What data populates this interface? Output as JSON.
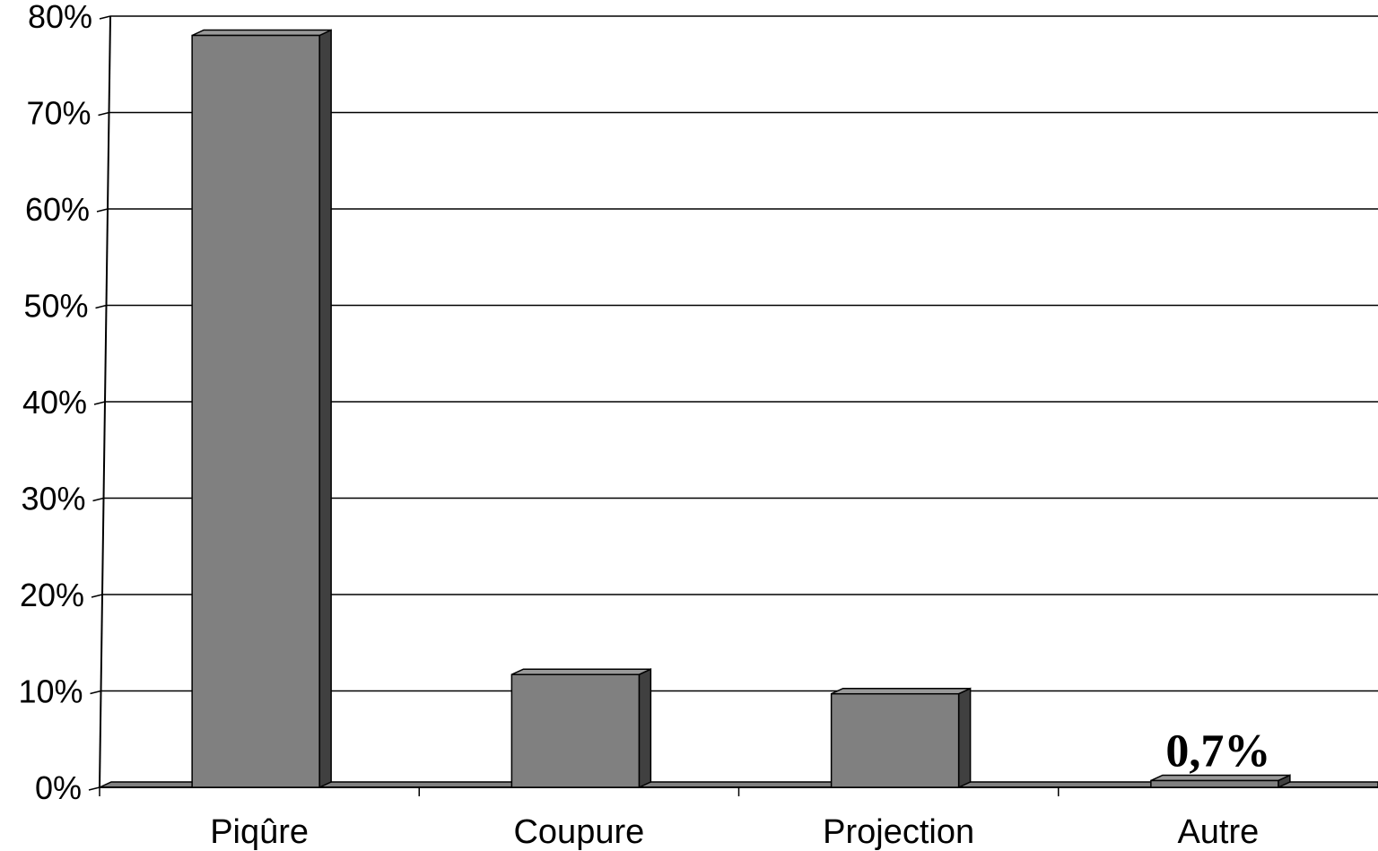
{
  "chart_data": {
    "type": "bar",
    "categories": [
      "Piqûre",
      "Coupure",
      "Projection",
      "Autre"
    ],
    "values": [
      78,
      11.7,
      9.7,
      0.7
    ],
    "data_labels": [
      "",
      "",
      "",
      "0,7%"
    ],
    "yticks": [
      "0%",
      "10%",
      "20%",
      "30%",
      "40%",
      "50%",
      "60%",
      "70%",
      "80%"
    ],
    "ylim": [
      0,
      80
    ],
    "grid": true,
    "style": "3d-bar",
    "colors": {
      "bar_front": "#808080",
      "bar_side": "#404040",
      "bar_top": "#999999",
      "floor": "#808080"
    }
  }
}
